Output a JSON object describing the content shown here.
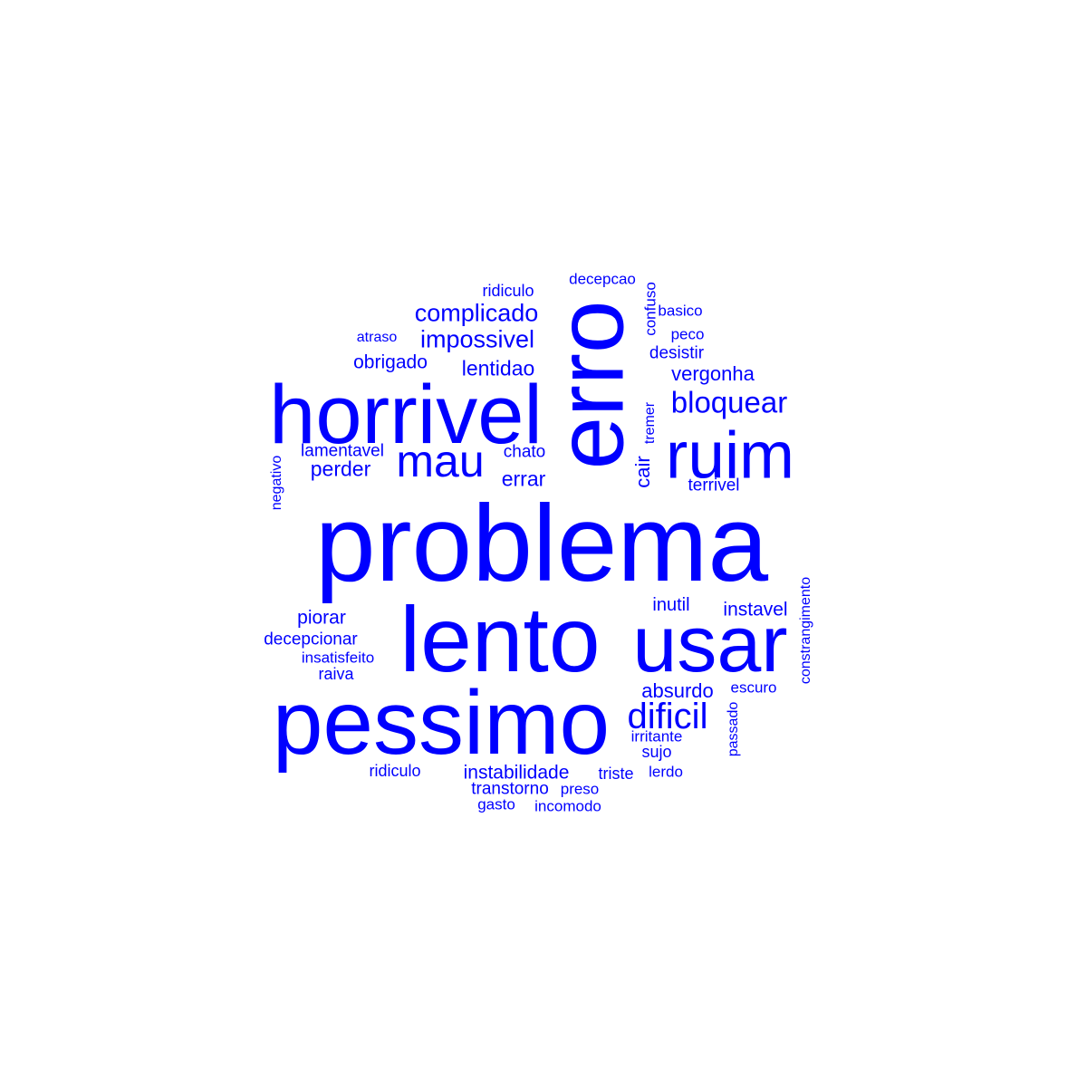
{
  "colors": {
    "word": "#0000ff",
    "background": "#ffffff"
  },
  "words": {
    "problema": "problema",
    "erro": "erro",
    "horrivel": "horrivel",
    "lento": "lento",
    "pessimo": "pessimo",
    "usar": "usar",
    "ruim": "ruim",
    "mau": "mau",
    "dificil": "dificil",
    "bloquear": "bloquear",
    "complicado": "complicado",
    "impossivel": "impossivel",
    "lentidao": "lentidao",
    "vergonha": "vergonha",
    "obrigado": "obrigado",
    "errar": "errar",
    "perder": "perder",
    "lamentavel": "lamentavel",
    "chato": "chato",
    "cair": "cair",
    "terrivel": "terrivel",
    "piorar": "piorar",
    "decepcionar": "decepcionar",
    "insatisfeito": "insatisfeito",
    "raiva": "raiva",
    "inutil": "inutil",
    "instavel": "instavel",
    "absurdo": "absurdo",
    "escuro": "escuro",
    "irritante": "irritante",
    "sujo": "sujo",
    "instabilidade": "instabilidade",
    "transtorno": "transtorno",
    "preso": "preso",
    "gasto": "gasto",
    "incomodo": "incomodo",
    "triste": "triste",
    "lerdo": "lerdo",
    "ridiculo_top": "ridiculo",
    "ridiculo_bottom": "ridiculo",
    "decepcao": "decepcao",
    "confuso": "confuso",
    "basico": "basico",
    "peco": "peco",
    "desistir": "desistir",
    "atraso": "atraso",
    "tremer": "tremer",
    "negativo": "negativo",
    "passado": "passado",
    "constrangimento": "constrangimento"
  }
}
